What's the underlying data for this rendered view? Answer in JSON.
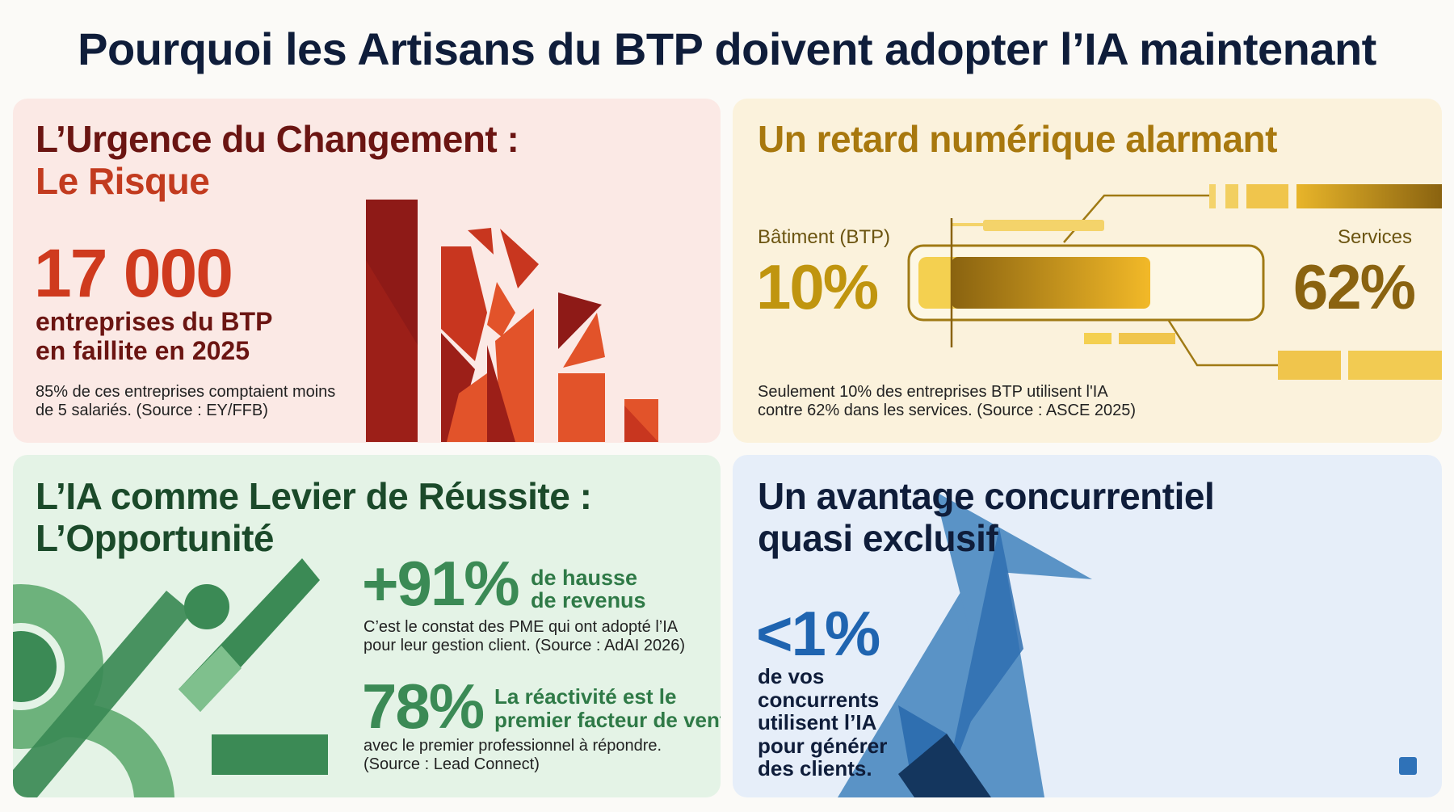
{
  "title": "Pourquoi les Artisans du BTP doivent adopter l’IA maintenant",
  "risk": {
    "heading_line1": "L’Urgence du Changement :",
    "heading_line2": "Le Risque",
    "stat": "17 000",
    "stat_label_line1": "entreprises du BTP",
    "stat_label_line2": "en faillite en 2025",
    "note_line1": "85% de ces entreprises comptaient moins",
    "note_line2": "de 5 salariés. (Source : EY/FFB)",
    "colors": {
      "dark": "#8e1a17",
      "mid": "#c8361f",
      "light": "#e2532a"
    }
  },
  "lag": {
    "heading": "Un retard numérique alarmant",
    "left_label": "Bâtiment (BTP)",
    "left_value": "10%",
    "right_label": "Services",
    "right_value": "62%",
    "note_line1": "Seulement 10% des entreprises BTP utilisent l'IA",
    "note_line2": "contre 62% dans les services. (Source : ASCE 2025)",
    "colors": {
      "text": "#b0850f",
      "dark": "#8a6310",
      "light": "#f4c842"
    }
  },
  "opportunity": {
    "heading_line1": "L’IA comme Levier de Réussite :",
    "heading_line2": "L’Opportunité",
    "stat1": "+91%",
    "stat1_label_line1": "de hausse",
    "stat1_label_line2": "de revenus",
    "stat1_note_line1": "C’est le constat des PME qui ont adopté l’IA",
    "stat1_note_line2": "pour leur gestion client. (Source : AdAI 2026)",
    "stat2": "78%",
    "stat2_label_line1": "La réactivité est le",
    "stat2_label_line2": "premier facteur de vente",
    "stat2_note_line1": "avec le premier professionnel à répondre.",
    "stat2_note_line2": "(Source : Lead Connect)",
    "colors": {
      "text": "#1e5a32",
      "accent": "#3b8a55",
      "light": "#6db27c"
    }
  },
  "advantage": {
    "heading_line1": "Un avantage concurrentiel",
    "heading_line2": "quasi exclusif",
    "stat": "<1%",
    "stat_label_lines": [
      "de vos",
      "concurrents",
      "utilisent l’IA",
      "pour générer",
      "des clients."
    ],
    "colors": {
      "text": "#0f1d3a",
      "accent": "#1f64b0",
      "light": "#5a93c6",
      "dark": "#14365e"
    }
  }
}
